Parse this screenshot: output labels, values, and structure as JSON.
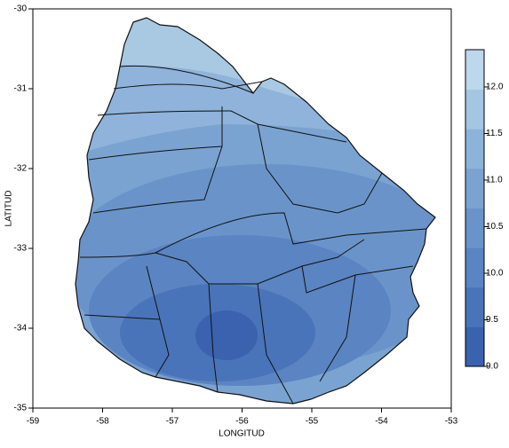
{
  "chart_data": {
    "type": "contour-map",
    "xlabel": "LONGITUD",
    "ylabel": "LATITUD",
    "xlim": [
      -59,
      -53
    ],
    "xticks": [
      -59,
      -58,
      -57,
      -56,
      -55,
      -54,
      -53
    ],
    "ylim": [
      -30,
      -35
    ],
    "yticks": [
      -30,
      -31,
      -32,
      -33,
      -34,
      -35
    ],
    "colorbar": {
      "clim": [
        9,
        12.4
      ],
      "colors": [
        "#3a62ae",
        "#4a74ba",
        "#5a84c2",
        "#6a94c9",
        "#7aa3d1",
        "#8cb3d9",
        "#a4c6e2",
        "#bcd8ea"
      ],
      "ticks": [
        {
          "value": 9,
          "label": "9.0"
        },
        {
          "value": 9.5,
          "label": "9.5"
        },
        {
          "value": 10,
          "label": "10.0"
        },
        {
          "value": 10.5,
          "label": "10.5"
        },
        {
          "value": 11,
          "label": "11.0"
        },
        {
          "value": 11.5,
          "label": "11.5"
        },
        {
          "value": 12,
          "label": "12.0"
        }
      ]
    }
  }
}
